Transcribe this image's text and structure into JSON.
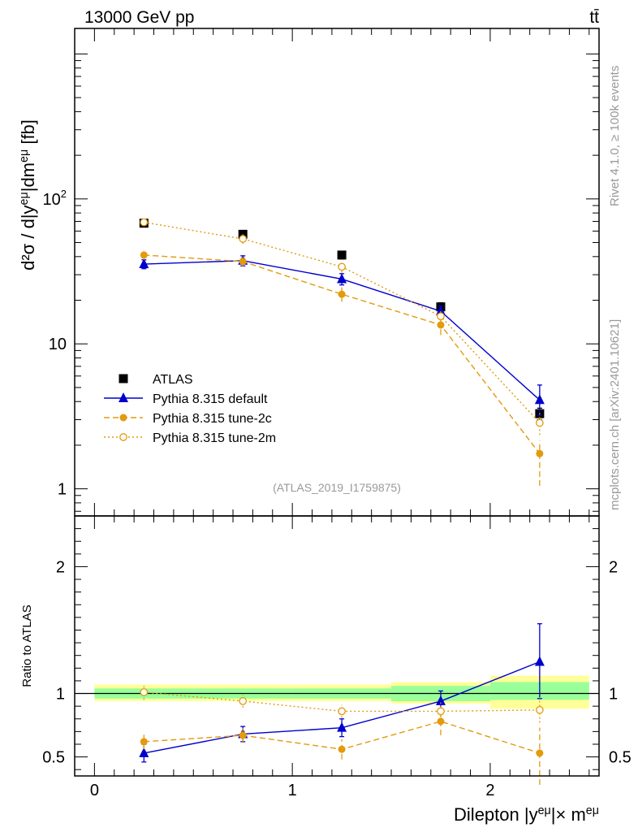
{
  "header": {
    "energy_label": "13000 GeV pp",
    "process_label": "tt̄"
  },
  "side_labels": {
    "rivet": "Rivet 4.1.0, ≥ 100k events",
    "mcplots": "mcplots.cern.ch [arXiv:2401.10621]"
  },
  "colors": {
    "atlas": "#000000",
    "default": "#0000cc",
    "tune2c": "#e39a0c",
    "tune2m": "#e39a0c",
    "band_inner": "#99ff99",
    "band_outer": "#ffff99"
  },
  "chart_data": [
    {
      "type": "line",
      "panel": "main",
      "analysis_label": "(ATLAS_2019_I1759875)",
      "ylabel": "d²σ / d|y^eμ|dm^eμ [fb]",
      "yscale": "log",
      "ylim": [
        0.65,
        1500
      ],
      "xlim": [
        -0.1,
        2.55
      ],
      "yticks": [
        {
          "value": 1,
          "label": "1"
        },
        {
          "value": 10,
          "label": "10"
        },
        {
          "value": 100,
          "label": "10²"
        }
      ],
      "x": [
        0.25,
        0.75,
        1.25,
        1.75,
        2.25
      ],
      "series": [
        {
          "name": "ATLAS",
          "key": "atlas",
          "marker": "square",
          "line": "none",
          "values": [
            68,
            57,
            41,
            18,
            3.3
          ],
          "err_lo": [
            4,
            3,
            2.5,
            1.2,
            0.3
          ],
          "err_hi": [
            4,
            3,
            2.5,
            1.2,
            0.3
          ]
        },
        {
          "name": "Pythia 8.315 default",
          "key": "default",
          "marker": "triangle",
          "line": "solid",
          "values": [
            35.5,
            37.5,
            28.0,
            16.8,
            4.1
          ],
          "err_lo": [
            2.5,
            3,
            2.5,
            1.5,
            0.9
          ],
          "err_hi": [
            2.5,
            3,
            2.5,
            1.5,
            1.1
          ]
        },
        {
          "name": "Pythia 8.315 tune-2c",
          "key": "tune2c",
          "marker": "circle",
          "line": "dashed",
          "values": [
            41.0,
            37.0,
            22.0,
            13.5,
            1.75
          ],
          "err_lo": [
            3,
            3,
            2.5,
            2.0,
            0.7
          ],
          "err_hi": [
            3,
            3,
            2.5,
            2.0,
            0.4
          ]
        },
        {
          "name": "Pythia 8.315 tune-2m",
          "key": "tune2m",
          "marker": "open-circle",
          "line": "dotted",
          "values": [
            69,
            53,
            34,
            15.5,
            2.85
          ],
          "err_lo": [
            4,
            4,
            3,
            2,
            0.5
          ],
          "err_hi": [
            4,
            4,
            3,
            2,
            0.5
          ]
        }
      ]
    },
    {
      "type": "line",
      "panel": "ratio",
      "ylabel": "Ratio to ATLAS",
      "xlabel": "Dilepton |y^eμ|× m^eμ",
      "ylim": [
        0.35,
        2.4
      ],
      "xlim": [
        -0.1,
        2.55
      ],
      "yticks": [
        {
          "value": 0.5,
          "label": "0.5"
        },
        {
          "value": 1,
          "label": "1"
        },
        {
          "value": 2,
          "label": "2"
        }
      ],
      "xticks": [
        {
          "value": 0,
          "label": "0"
        },
        {
          "value": 1,
          "label": "1"
        },
        {
          "value": 2,
          "label": "2"
        }
      ],
      "reference": 1,
      "bands": [
        {
          "x0": 0.0,
          "x1": 0.5,
          "inner": [
            0.96,
            1.04
          ],
          "outer": [
            0.94,
            1.07
          ]
        },
        {
          "x0": 0.5,
          "x1": 1.0,
          "inner": [
            0.96,
            1.04
          ],
          "outer": [
            0.94,
            1.07
          ]
        },
        {
          "x0": 1.0,
          "x1": 1.5,
          "inner": [
            0.96,
            1.04
          ],
          "outer": [
            0.94,
            1.07
          ]
        },
        {
          "x0": 1.5,
          "x1": 2.0,
          "inner": [
            0.94,
            1.06
          ],
          "outer": [
            0.92,
            1.09
          ]
        },
        {
          "x0": 2.0,
          "x1": 2.5,
          "inner": [
            0.95,
            1.09
          ],
          "outer": [
            0.88,
            1.14
          ]
        }
      ],
      "x": [
        0.25,
        0.75,
        1.25,
        1.75,
        2.25
      ],
      "series": [
        {
          "name": "Pythia 8.315 default",
          "key": "default",
          "marker": "triangle",
          "line": "solid",
          "values": [
            0.53,
            0.68,
            0.73,
            0.94,
            1.25
          ],
          "err_lo": [
            0.07,
            0.06,
            0.07,
            0.08,
            0.29
          ],
          "err_hi": [
            0.07,
            0.06,
            0.07,
            0.08,
            0.3
          ]
        },
        {
          "name": "Pythia 8.315 tune-2c",
          "key": "tune2c",
          "marker": "circle",
          "line": "dashed",
          "values": [
            0.62,
            0.67,
            0.56,
            0.78,
            0.53
          ],
          "err_lo": [
            0.06,
            0.06,
            0.08,
            0.11,
            0.25
          ],
          "err_hi": [
            0.06,
            0.06,
            0.08,
            0.11,
            0.2
          ]
        },
        {
          "name": "Pythia 8.315 tune-2m",
          "key": "tune2m",
          "marker": "open-circle",
          "line": "dotted",
          "values": [
            1.01,
            0.94,
            0.86,
            0.86,
            0.87
          ],
          "err_lo": [
            0.06,
            0.05,
            0.05,
            0.07,
            0.1
          ],
          "err_hi": [
            0.06,
            0.05,
            0.05,
            0.07,
            0.1
          ]
        }
      ]
    }
  ]
}
